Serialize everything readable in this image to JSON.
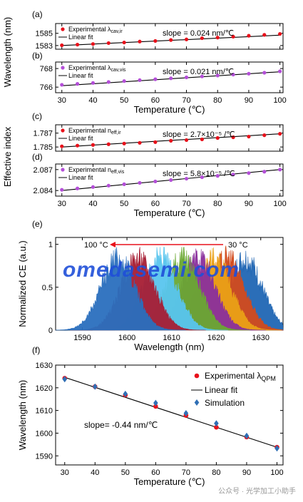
{
  "watermark": "omedasemi.com",
  "credit": "公众号 · 光学加工小助手",
  "colors": {
    "red": "#e8111b",
    "purple": "#b44fd8",
    "blue": "#2f6fb5",
    "arrow": "#e8111b",
    "watermark": "#1f4fd8"
  },
  "chart_data": [
    {
      "id": "a",
      "panel_label": "(a)",
      "type": "scatter",
      "legend": {
        "experimental": "Experimental λ",
        "sub": "cav,ir",
        "fit": "Linear fit"
      },
      "annotation": "slope = 0.024 nm/℃",
      "ylim": [
        1582.4,
        1586.6
      ],
      "yticks": [
        1583,
        1585
      ],
      "xlim": [
        28,
        101
      ],
      "x": [
        30,
        35,
        40,
        45,
        50,
        55,
        60,
        65,
        70,
        75,
        80,
        85,
        90,
        95,
        100
      ],
      "y": [
        1583.05,
        1583.15,
        1583.25,
        1583.4,
        1583.5,
        1583.65,
        1583.75,
        1583.9,
        1584.0,
        1584.2,
        1584.3,
        1584.45,
        1584.6,
        1584.75,
        1584.9
      ],
      "fit": [
        1583.0,
        1584.7
      ],
      "point_color": "#e8111b"
    },
    {
      "id": "b",
      "panel_label": "(b)",
      "type": "scatter",
      "legend": {
        "experimental": "Experimental λ",
        "sub": "cav,vis",
        "fit": "Linear fit"
      },
      "annotation": "slope = 0.021 nm/℃",
      "ylim": [
        765.4,
        768.7
      ],
      "yticks": [
        766,
        768
      ],
      "xlim": [
        28,
        101
      ],
      "x": [
        30,
        35,
        40,
        45,
        50,
        55,
        60,
        65,
        70,
        75,
        80,
        85,
        90,
        95,
        100
      ],
      "y": [
        766.25,
        766.35,
        766.45,
        766.55,
        766.65,
        766.75,
        766.85,
        766.95,
        767.05,
        767.15,
        767.25,
        767.35,
        767.45,
        767.55,
        767.7
      ],
      "fit": [
        766.15,
        767.65
      ],
      "point_color": "#b44fd8",
      "xlabel": "Temperature (℃)",
      "xticks": [
        30,
        40,
        50,
        60,
        70,
        80,
        90,
        100
      ]
    },
    {
      "id": "c",
      "panel_label": "(c)",
      "type": "scatter",
      "legend": {
        "experimental": "Experimental n",
        "sub": "eff,ir",
        "fit": "Linear fit"
      },
      "annotation": "slope = 2.7×10⁻⁵ /℃",
      "ylim": [
        1.7844,
        1.7882
      ],
      "yticks": [
        1.785,
        1.787
      ],
      "ytick_labels": [
        "1.785",
        "1.787"
      ],
      "xlim": [
        28,
        101
      ],
      "x": [
        30,
        35,
        40,
        45,
        50,
        55,
        60,
        65,
        70,
        75,
        80,
        85,
        90,
        95,
        100
      ],
      "y": [
        1.7851,
        1.7852,
        1.7853,
        1.7854,
        1.7855,
        1.7856,
        1.7857,
        1.7859,
        1.786,
        1.7861,
        1.7863,
        1.7864,
        1.7865,
        1.7867,
        1.7869
      ],
      "fit": [
        1.785,
        1.7869
      ],
      "point_color": "#e8111b"
    },
    {
      "id": "d",
      "panel_label": "(d)",
      "type": "scatter",
      "legend": {
        "experimental": "Experimental n",
        "sub": "eff,vis",
        "fit": "Linear fit"
      },
      "annotation": "slope = 5.8×10⁻⁵ /℃",
      "ylim": [
        2.0832,
        2.0878
      ],
      "yticks": [
        2.084,
        2.087
      ],
      "ytick_labels": [
        "2.084",
        "2.087"
      ],
      "xlim": [
        28,
        101
      ],
      "x": [
        30,
        35,
        40,
        45,
        50,
        55,
        60,
        65,
        70,
        75,
        80,
        85,
        90,
        95,
        100
      ],
      "y": [
        2.0841,
        2.0843,
        2.0845,
        2.0847,
        2.0849,
        2.0851,
        2.0853,
        2.0855,
        2.0857,
        2.0859,
        2.0861,
        2.0863,
        2.0865,
        2.0867,
        2.087
      ],
      "fit": [
        2.084,
        2.087
      ],
      "point_color": "#b44fd8",
      "xlabel": "Temperature (℃)",
      "xticks": [
        30,
        40,
        50,
        60,
        70,
        80,
        90,
        100
      ]
    },
    {
      "id": "e",
      "panel_label": "(e)",
      "type": "area",
      "ylabel": "Normalized CE (a.u.)",
      "xlabel": "Wavelength (nm)",
      "xlim": [
        1584,
        1635
      ],
      "ylim": [
        0,
        1.08
      ],
      "xticks": [
        1590,
        1600,
        1610,
        1620,
        1630
      ],
      "yticks": [
        0,
        0.5,
        1
      ],
      "arrow_left_label": "100 °C",
      "arrow_right_label": "30 °C",
      "series": [
        {
          "center": 1626.5,
          "color": "#2066b4"
        },
        {
          "center": 1622.5,
          "color": "#d24a1c"
        },
        {
          "center": 1619.5,
          "color": "#eaa016"
        },
        {
          "center": 1616.0,
          "color": "#8a2f9c"
        },
        {
          "center": 1612.5,
          "color": "#6aa832"
        },
        {
          "center": 1607.5,
          "color": "#59c5ee"
        },
        {
          "center": 1602.5,
          "color": "#a61e34"
        },
        {
          "center": 1598.0,
          "color": "#2a6fbe"
        }
      ]
    },
    {
      "id": "f",
      "panel_label": "(f)",
      "type": "scatter",
      "xlabel": "Temperature (℃)",
      "ylabel": "Wavelength (nm)",
      "xlim": [
        27,
        102
      ],
      "ylim": [
        1586,
        1630
      ],
      "xticks": [
        30,
        40,
        50,
        60,
        70,
        80,
        90,
        100
      ],
      "yticks": [
        1590,
        1600,
        1610,
        1620,
        1630
      ],
      "annotation": "slope= -0.44 nm/℃",
      "legend": {
        "experimental": "Experimental λ",
        "sub": "QPM",
        "fit": "Linear fit",
        "simulation": "Simulation"
      },
      "x": [
        30,
        40,
        50,
        60,
        70,
        80,
        90,
        100
      ],
      "experimental": [
        1624.2,
        1620.5,
        1616.8,
        1611.8,
        1607.8,
        1602.6,
        1598.3,
        1593.8
      ],
      "simulation": [
        1623.8,
        1620.5,
        1617.3,
        1613.3,
        1608.8,
        1604.3,
        1598.8,
        1593.3
      ],
      "fit": [
        1624.6,
        1593.8
      ],
      "exp_color": "#e8111b",
      "sim_color": "#2f6fb5"
    }
  ],
  "shared_labels": {
    "ab_ylabel": "Wavelength (nm)",
    "cd_ylabel": "Effective index"
  }
}
